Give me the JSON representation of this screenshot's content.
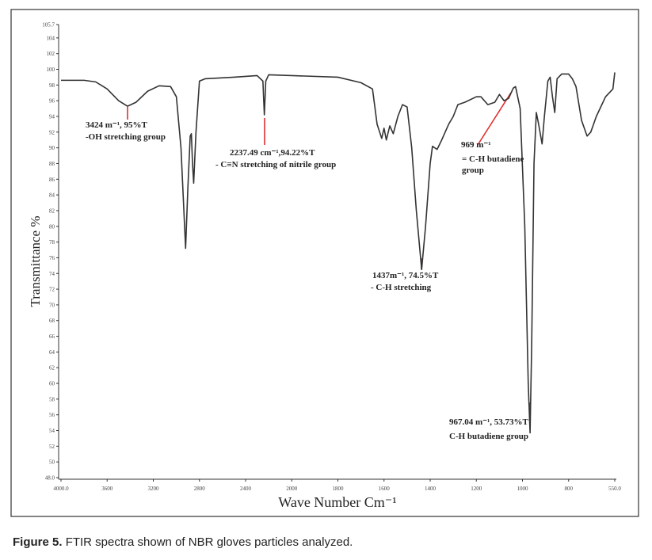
{
  "chart_data": {
    "type": "line",
    "xlabel": "Wave Number Cm⁻¹",
    "ylabel": "Transmittance %",
    "color": "#333333",
    "grid": false,
    "xlim": [
      4000,
      550
    ],
    "xticks": [
      {
        "value": 4000,
        "label": "4000.0"
      },
      3600,
      3200,
      2800,
      2400,
      2000,
      1800,
      1600,
      1400,
      1200,
      1000,
      800,
      {
        "value": 550,
        "label": "550.0"
      }
    ],
    "ylim": [
      48,
      105.7
    ],
    "yticks": [
      {
        "value": 48,
        "label": "48.0"
      },
      50,
      52,
      54,
      56,
      58,
      60,
      62,
      64,
      66,
      68,
      70,
      72,
      74,
      76,
      78,
      80,
      82,
      84,
      86,
      88,
      90,
      92,
      94,
      96,
      98,
      100,
      102,
      104,
      105.7
    ],
    "x": [
      4000,
      3800,
      3700,
      3600,
      3500,
      3424,
      3350,
      3250,
      3150,
      3050,
      3000,
      2960,
      2920,
      2900,
      2880,
      2870,
      2860,
      2850,
      2830,
      2800,
      2750,
      2500,
      2300,
      2250,
      2237.49,
      2225,
      2200,
      2000,
      1800,
      1700,
      1650,
      1630,
      1610,
      1600,
      1590,
      1575,
      1560,
      1540,
      1520,
      1500,
      1480,
      1460,
      1437,
      1420,
      1400,
      1390,
      1370,
      1350,
      1320,
      1300,
      1280,
      1250,
      1200,
      1180,
      1150,
      1120,
      1100,
      1080,
      1060,
      1040,
      1030,
      1010,
      990,
      975,
      967.04,
      960,
      950,
      940,
      930,
      915,
      905,
      890,
      880,
      870,
      860,
      850,
      830,
      800,
      780,
      760,
      730,
      700,
      680,
      650,
      600,
      560,
      550
    ],
    "values": [
      98.6,
      98.6,
      98.4,
      97.5,
      96.0,
      95.3,
      95.8,
      97.2,
      97.9,
      97.8,
      96.5,
      90,
      77.2,
      85,
      91.5,
      91.8,
      88,
      85.5,
      92,
      98.5,
      98.8,
      99.0,
      99.2,
      98.5,
      94.2,
      98.5,
      99.3,
      99.2,
      99.0,
      98.3,
      97.5,
      93,
      91.2,
      92.5,
      91.0,
      92.8,
      91.8,
      94,
      95.5,
      95.2,
      90,
      82,
      74.5,
      80,
      88,
      90.2,
      89.8,
      91,
      93,
      94,
      95.5,
      95.8,
      96.5,
      96.5,
      95.5,
      95.8,
      96.8,
      96,
      96.3,
      97.6,
      97.8,
      95,
      80,
      60,
      53.7,
      65,
      88,
      94.5,
      93,
      90.5,
      94,
      98.5,
      99,
      96.5,
      94.5,
      98.8,
      99.4,
      99.4,
      98.8,
      97.8,
      93.5,
      91.5,
      92,
      94,
      96.5,
      97.5,
      99.6
    ],
    "annotations": [
      {
        "lines": [
          "3424 m⁻¹, 95%T",
          "-OH stretching group"
        ]
      },
      {
        "lines": [
          "2237.49 cm⁻¹,94.22%T",
          "- C≡N stretching of nitrile group"
        ]
      },
      {
        "lines": [
          "1437m⁻¹,  74.5%T",
          "- C-H stretching"
        ]
      },
      {
        "lines": [
          "969 m⁻¹",
          "= C-H butadiene",
          "group"
        ]
      },
      {
        "lines": [
          "967.04 m⁻¹,  53.73%T",
          "C-H butadiene group"
        ]
      }
    ]
  },
  "caption": {
    "label": "Figure 5.",
    "text": "FTIR spectra shown of NBR gloves particles analyzed."
  }
}
